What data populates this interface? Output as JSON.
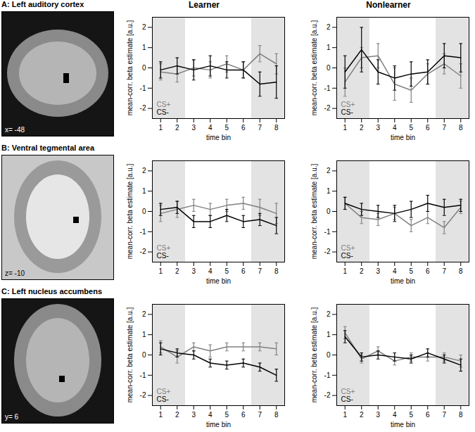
{
  "columns": [
    "Learner",
    "Nonlearner"
  ],
  "panels": [
    {
      "title": "A: Left auditory cortex",
      "slice_label": "x= -48"
    },
    {
      "title": "B: Ventral tegmental area",
      "slice_label": "z= -10"
    },
    {
      "title": "C: Left nucleus accumbens",
      "slice_label": "y= 6"
    }
  ],
  "chart_data": [
    {
      "type": "line",
      "x": [
        1,
        2,
        3,
        4,
        5,
        6,
        7,
        8
      ],
      "xlim": [
        0.5,
        8.5
      ],
      "xticks": [
        1,
        2,
        3,
        4,
        5,
        6,
        7,
        8
      ],
      "ylim": [
        -2.5,
        2.5
      ],
      "yticks": [
        -2,
        -1,
        0,
        1,
        2
      ],
      "x_label": "time bin",
      "y_label": "mean-corr. beta estimate [a.u.]",
      "shaded": [
        [
          0.5,
          2.5
        ],
        [
          6.5,
          8.5
        ]
      ],
      "series": [
        {
          "name": "CS+",
          "color": "#808080",
          "values": [
            -0.2,
            -0.3,
            0.0,
            -0.1,
            0.2,
            -0.1,
            0.7,
            0.2
          ],
          "errors": [
            0.4,
            0.4,
            0.4,
            0.4,
            0.4,
            0.4,
            0.4,
            0.5
          ]
        },
        {
          "name": "CS-",
          "color": "#000000",
          "values": [
            -0.1,
            0.1,
            -0.1,
            0.1,
            -0.1,
            -0.1,
            -0.8,
            -0.7
          ],
          "errors": [
            0.4,
            0.4,
            0.5,
            0.5,
            0.4,
            0.4,
            0.6,
            0.8
          ]
        }
      ]
    },
    {
      "type": "line",
      "x": [
        1,
        2,
        3,
        4,
        5,
        6,
        7,
        8
      ],
      "xlim": [
        0.5,
        8.5
      ],
      "xticks": [
        1,
        2,
        3,
        4,
        5,
        6,
        7,
        8
      ],
      "ylim": [
        -2.5,
        2.5
      ],
      "yticks": [
        -2,
        -1,
        0,
        1,
        2
      ],
      "x_label": "time bin",
      "y_label": "mean-corr. beta estimate [a.u.]",
      "shaded": [
        [
          0.5,
          2.5
        ],
        [
          6.5,
          8.5
        ]
      ],
      "series": [
        {
          "name": "CS+",
          "color": "#808080",
          "values": [
            -0.7,
            0.5,
            0.6,
            -0.8,
            -1.1,
            -0.3,
            0.2,
            -0.4
          ],
          "errors": [
            0.7,
            0.5,
            0.6,
            0.8,
            0.6,
            0.5,
            0.5,
            0.6
          ]
        },
        {
          "name": "CS-",
          "color": "#000000",
          "values": [
            -0.2,
            0.9,
            -0.2,
            -0.5,
            -0.3,
            -0.2,
            0.6,
            0.5
          ],
          "errors": [
            0.8,
            1.1,
            0.6,
            0.6,
            0.6,
            0.6,
            0.6,
            0.7
          ]
        }
      ]
    },
    {
      "type": "line",
      "x": [
        1,
        2,
        3,
        4,
        5,
        6,
        7,
        8
      ],
      "xlim": [
        0.5,
        8.5
      ],
      "xticks": [
        1,
        2,
        3,
        4,
        5,
        6,
        7,
        8
      ],
      "ylim": [
        -2.5,
        2.5
      ],
      "yticks": [
        -2,
        -1,
        0,
        1,
        2
      ],
      "x_label": "time bin",
      "y_label": "mean-corr. beta estimate [a.u.]",
      "shaded": [
        [
          0.5,
          2.5
        ],
        [
          6.5,
          8.5
        ]
      ],
      "series": [
        {
          "name": "CS+",
          "color": "#808080",
          "values": [
            -0.1,
            0.1,
            0.3,
            0.1,
            0.3,
            0.4,
            0.2,
            -0.1
          ],
          "errors": [
            0.4,
            0.4,
            0.3,
            0.3,
            0.3,
            0.3,
            0.4,
            0.5
          ]
        },
        {
          "name": "CS-",
          "color": "#000000",
          "values": [
            0.1,
            0.2,
            -0.5,
            -0.5,
            -0.2,
            -0.5,
            -0.4,
            -0.7
          ],
          "errors": [
            0.3,
            0.3,
            0.3,
            0.3,
            0.3,
            0.3,
            0.3,
            0.4
          ]
        }
      ]
    },
    {
      "type": "line",
      "x": [
        1,
        2,
        3,
        4,
        5,
        6,
        7,
        8
      ],
      "xlim": [
        0.5,
        8.5
      ],
      "xticks": [
        1,
        2,
        3,
        4,
        5,
        6,
        7,
        8
      ],
      "ylim": [
        -2.5,
        2.5
      ],
      "yticks": [
        -2,
        -1,
        0,
        1,
        2
      ],
      "x_label": "time bin",
      "y_label": "mean-corr. beta estimate [a.u.]",
      "shaded": [
        [
          0.5,
          2.5
        ],
        [
          6.5,
          8.5
        ]
      ],
      "series": [
        {
          "name": "CS+",
          "color": "#808080",
          "values": [
            0.4,
            -0.3,
            -0.4,
            -0.1,
            -0.7,
            -0.3,
            -0.8,
            0.2
          ],
          "errors": [
            0.3,
            0.3,
            0.3,
            0.3,
            0.3,
            0.3,
            0.3,
            0.3
          ]
        },
        {
          "name": "CS-",
          "color": "#000000",
          "values": [
            0.4,
            0.1,
            0.0,
            -0.1,
            0.1,
            0.4,
            0.2,
            0.3
          ],
          "errors": [
            0.3,
            0.3,
            0.3,
            0.4,
            0.4,
            0.4,
            0.4,
            0.3
          ]
        }
      ]
    },
    {
      "type": "line",
      "x": [
        1,
        2,
        3,
        4,
        5,
        6,
        7,
        8
      ],
      "xlim": [
        0.5,
        8.5
      ],
      "xticks": [
        1,
        2,
        3,
        4,
        5,
        6,
        7,
        8
      ],
      "ylim": [
        -2.5,
        2.5
      ],
      "yticks": [
        -2,
        -1,
        0,
        1,
        2
      ],
      "x_label": "time bin",
      "y_label": "mean-corr. beta estimate [a.u.]",
      "shaded": [
        [
          0.5,
          2.5
        ],
        [
          6.5,
          8.5
        ]
      ],
      "series": [
        {
          "name": "CS+",
          "color": "#808080",
          "values": [
            0.4,
            -0.1,
            0.4,
            0.2,
            0.4,
            0.4,
            0.4,
            0.3
          ],
          "errors": [
            0.3,
            0.3,
            0.2,
            0.3,
            0.2,
            0.2,
            0.2,
            0.3
          ]
        },
        {
          "name": "CS-",
          "color": "#000000",
          "values": [
            0.3,
            0.1,
            0.0,
            -0.4,
            -0.5,
            -0.4,
            -0.6,
            -1.0
          ],
          "errors": [
            0.3,
            0.2,
            0.2,
            0.2,
            0.2,
            0.2,
            0.2,
            0.3
          ]
        }
      ]
    },
    {
      "type": "line",
      "x": [
        1,
        2,
        3,
        4,
        5,
        6,
        7,
        8
      ],
      "xlim": [
        0.5,
        8.5
      ],
      "xticks": [
        1,
        2,
        3,
        4,
        5,
        6,
        7,
        8
      ],
      "ylim": [
        -2.5,
        2.5
      ],
      "yticks": [
        -2,
        -1,
        0,
        1,
        2
      ],
      "x_label": "time bin",
      "y_label": "mean-corr. beta estimate [a.u.]",
      "shaded": [
        [
          0.5,
          2.5
        ],
        [
          6.5,
          8.5
        ]
      ],
      "series": [
        {
          "name": "CS+",
          "color": "#808080",
          "values": [
            1.1,
            -0.2,
            0.2,
            -0.3,
            -0.1,
            -0.1,
            -0.1,
            -0.3
          ],
          "errors": [
            0.3,
            0.2,
            0.2,
            0.2,
            0.2,
            0.2,
            0.2,
            0.3
          ]
        },
        {
          "name": "CS-",
          "color": "#000000",
          "values": [
            0.9,
            -0.1,
            0.0,
            -0.1,
            -0.2,
            0.1,
            -0.2,
            -0.5
          ],
          "errors": [
            0.3,
            0.2,
            0.2,
            0.2,
            0.2,
            0.2,
            0.2,
            0.3
          ]
        }
      ]
    }
  ]
}
